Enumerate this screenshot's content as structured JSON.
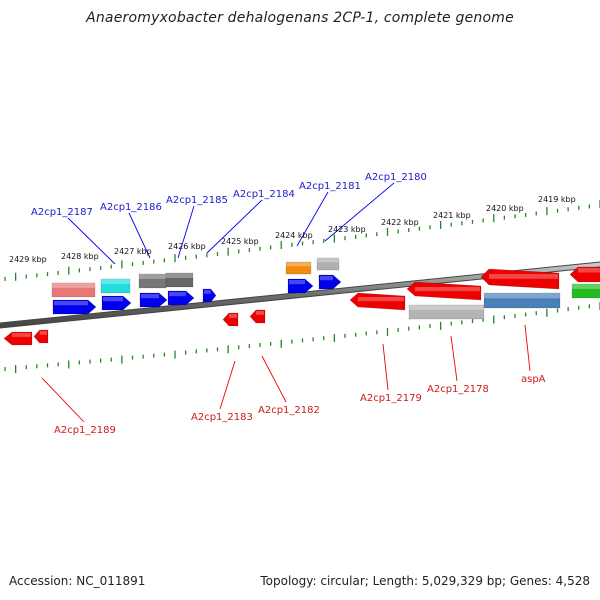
{
  "header": {
    "title": "Anaeromyxobacter dehalogenans 2CP-1, complete genome"
  },
  "footer": {
    "accession": "Accession: NC_011891",
    "summary": "Topology: circular; Length: 5,029,329 bp; Genes: 4,528"
  },
  "colors": {
    "backbone": "#808080",
    "tick": "#1e8a1e",
    "forward_gene": "#0000ee",
    "reverse_gene": "#ee0000",
    "label_forward": "#1a1acc",
    "label_reverse": "#cc1a1a",
    "green_feature": "#22bb22"
  },
  "scale_ticks": [
    "2429 kbp",
    "2428 kbp",
    "2427 kbp",
    "2426 kbp",
    "2425 kbp",
    "2424 kbp",
    "2423 kbp",
    "2422 kbp",
    "2421 kbp",
    "2420 kbp",
    "2419 kbp"
  ],
  "gene_labels_top": [
    "A2cp1_2187",
    "A2cp1_2186",
    "A2cp1_2185",
    "A2cp1_2184",
    "A2cp1_2181",
    "A2cp1_2180"
  ],
  "gene_labels_bottom": [
    "A2cp1_2189",
    "A2cp1_2183",
    "A2cp1_2182",
    "A2cp1_2179",
    "A2cp1_2178",
    "aspA"
  ]
}
